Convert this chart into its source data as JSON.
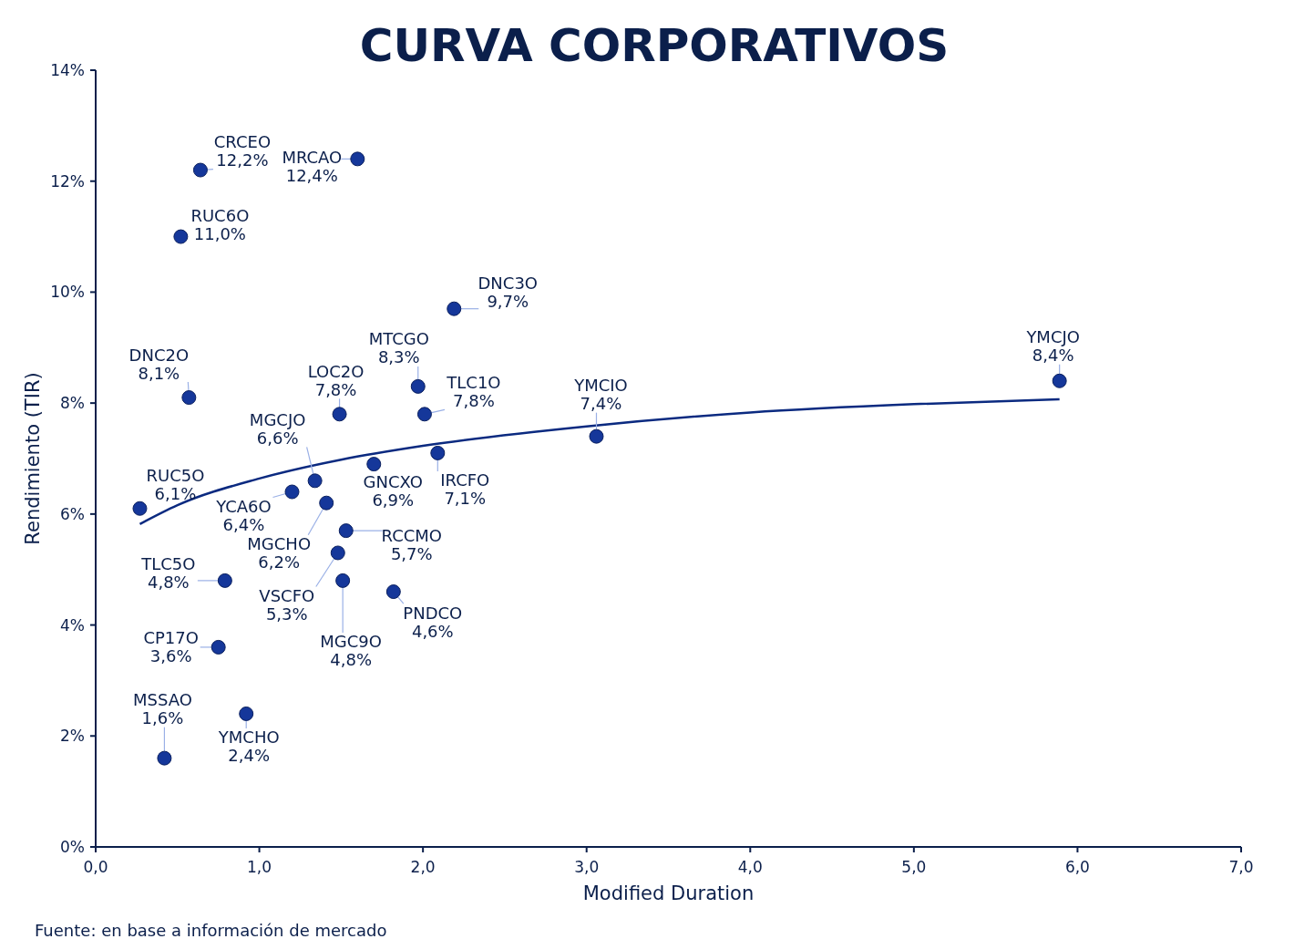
{
  "chart_data": {
    "type": "scatter",
    "title": "CURVA CORPORATIVOS",
    "xlabel": "Modified Duration",
    "ylabel": "Rendimiento (TIR)",
    "annotations": [
      "Fuente: en base a información de mercado"
    ],
    "xlim": [
      0,
      7
    ],
    "xticks": [
      {
        "value": 0,
        "label": "0,0"
      },
      {
        "value": 1,
        "label": "1,0"
      },
      {
        "value": 2,
        "label": "2,0"
      },
      {
        "value": 3,
        "label": "3,0"
      },
      {
        "value": 4,
        "label": "4,0"
      },
      {
        "value": 5,
        "label": "5,0"
      },
      {
        "value": 6,
        "label": "6,0"
      },
      {
        "value": 7,
        "label": "7,0"
      }
    ],
    "ylim": [
      0,
      14
    ],
    "yticks": [
      {
        "value": 0,
        "label": "0%"
      },
      {
        "value": 2,
        "label": "2%"
      },
      {
        "value": 4,
        "label": "4%"
      },
      {
        "value": 6,
        "label": "6%"
      },
      {
        "value": 8,
        "label": "8%"
      },
      {
        "value": 10,
        "label": "10%"
      },
      {
        "value": 12,
        "label": "12%"
      },
      {
        "value": 14,
        "label": "14%"
      }
    ],
    "grid": false,
    "marker": "circle",
    "series": [
      {
        "name": "CRCEO",
        "color": "#15379a",
        "x": [
          0.64
        ],
        "values": [
          12.2
        ],
        "value_labels": [
          "12,2%"
        ]
      },
      {
        "name": "MRCAO",
        "color": "#15379a",
        "x": [
          1.6
        ],
        "values": [
          12.4
        ],
        "value_labels": [
          "12,4%"
        ]
      },
      {
        "name": "RUC6O",
        "color": "#15379a",
        "x": [
          0.52
        ],
        "values": [
          11.0
        ],
        "value_labels": [
          "11,0%"
        ]
      },
      {
        "name": "DNC3O",
        "color": "#15379a",
        "x": [
          2.19
        ],
        "values": [
          9.7
        ],
        "value_labels": [
          "9,7%"
        ]
      },
      {
        "name": "DNC2O",
        "color": "#15379a",
        "x": [
          0.57
        ],
        "values": [
          8.1
        ],
        "value_labels": [
          "8,1%"
        ]
      },
      {
        "name": "MTCGO",
        "color": "#15379a",
        "x": [
          1.97
        ],
        "values": [
          8.3
        ],
        "value_labels": [
          "8,3%"
        ]
      },
      {
        "name": "LOC2O",
        "color": "#15379a",
        "x": [
          1.49
        ],
        "values": [
          7.8
        ],
        "value_labels": [
          "7,8%"
        ]
      },
      {
        "name": "TLC1O",
        "color": "#15379a",
        "x": [
          2.01
        ],
        "values": [
          7.8
        ],
        "value_labels": [
          "7,8%"
        ]
      },
      {
        "name": "YMCIO",
        "color": "#15379a",
        "x": [
          3.06
        ],
        "values": [
          7.4
        ],
        "value_labels": [
          "7,4%"
        ]
      },
      {
        "name": "YMCJO",
        "color": "#15379a",
        "x": [
          5.89
        ],
        "values": [
          8.4
        ],
        "value_labels": [
          "8,4%"
        ]
      },
      {
        "name": "GNCXO",
        "color": "#15379a",
        "x": [
          1.7
        ],
        "values": [
          6.9
        ],
        "value_labels": [
          "6,9%"
        ]
      },
      {
        "name": "IRCFO",
        "color": "#15379a",
        "x": [
          2.09
        ],
        "values": [
          7.1
        ],
        "value_labels": [
          "7,1%"
        ]
      },
      {
        "name": "MGCJO",
        "color": "#15379a",
        "x": [
          1.34
        ],
        "values": [
          6.6
        ],
        "value_labels": [
          "6,6%"
        ]
      },
      {
        "name": "RUC5O",
        "color": "#15379a",
        "x": [
          0.27
        ],
        "values": [
          6.1
        ],
        "value_labels": [
          "6,1%"
        ]
      },
      {
        "name": "YCA6O",
        "color": "#15379a",
        "x": [
          1.2
        ],
        "values": [
          6.4
        ],
        "value_labels": [
          "6,4%"
        ]
      },
      {
        "name": "MGCHO",
        "color": "#15379a",
        "x": [
          1.41
        ],
        "values": [
          6.2
        ],
        "value_labels": [
          "6,2%"
        ]
      },
      {
        "name": "RCCMO",
        "color": "#15379a",
        "x": [
          1.53
        ],
        "values": [
          5.7
        ],
        "value_labels": [
          "5,7%"
        ]
      },
      {
        "name": "VSCFO",
        "color": "#15379a",
        "x": [
          1.48
        ],
        "values": [
          5.3
        ],
        "value_labels": [
          "5,3%"
        ]
      },
      {
        "name": "MGC9O",
        "color": "#15379a",
        "x": [
          1.51
        ],
        "values": [
          4.8
        ],
        "value_labels": [
          "4,8%"
        ]
      },
      {
        "name": "PNDCO",
        "color": "#15379a",
        "x": [
          1.82
        ],
        "values": [
          4.6
        ],
        "value_labels": [
          "4,6%"
        ]
      },
      {
        "name": "TLC5O",
        "color": "#15379a",
        "x": [
          0.79
        ],
        "values": [
          4.8
        ],
        "value_labels": [
          "4,8%"
        ]
      },
      {
        "name": "CP17O",
        "color": "#15379a",
        "x": [
          0.75
        ],
        "values": [
          3.6
        ],
        "value_labels": [
          "3,6%"
        ]
      },
      {
        "name": "YMCHO",
        "color": "#15379a",
        "x": [
          0.92
        ],
        "values": [
          2.4
        ],
        "value_labels": [
          "2,4%"
        ]
      },
      {
        "name": "MSSAO",
        "color": "#15379a",
        "x": [
          0.42
        ],
        "values": [
          1.6
        ],
        "value_labels": [
          "1,6%"
        ]
      },
      {
        "type": "line",
        "color": "#0b2a80",
        "line_style": "solid",
        "marker": "none",
        "x": [
          0.27,
          0.5,
          1,
          1.5,
          2,
          3,
          4,
          5,
          5.89
        ],
        "values": [
          5.82,
          6.16,
          6.64,
          6.98,
          7.23,
          7.58,
          7.83,
          7.98,
          8.07
        ]
      }
    ]
  }
}
